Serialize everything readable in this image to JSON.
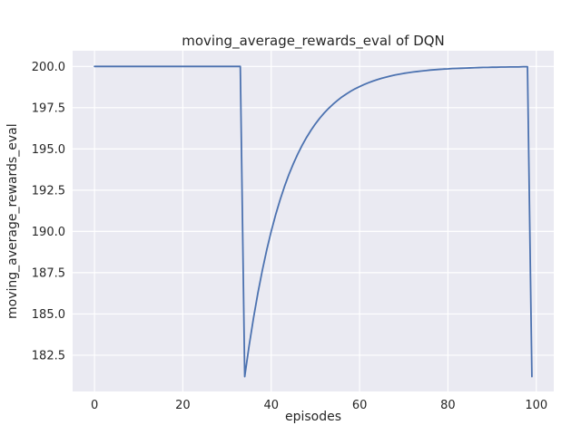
{
  "chart_data": {
    "type": "line",
    "title": "moving_average_rewards_eval of DQN",
    "xlabel": "episodes",
    "ylabel": "moving_average_rewards_eval",
    "xlim": [
      -4.95,
      103.95
    ],
    "ylim": [
      180.3,
      200.95
    ],
    "xticks": [
      0,
      20,
      40,
      60,
      80,
      100
    ],
    "xtick_labels": [
      "0",
      "20",
      "40",
      "60",
      "80",
      "100"
    ],
    "yticks": [
      182.5,
      185.0,
      187.5,
      190.0,
      192.5,
      195.0,
      197.5,
      200.0
    ],
    "ytick_labels": [
      "182.5",
      "185.0",
      "187.5",
      "190.0",
      "192.5",
      "195.0",
      "197.5",
      "200.0"
    ],
    "grid": true,
    "legend": false,
    "style": {
      "line_color": "#4c72b0",
      "plot_bg": "#eaeaf2",
      "grid_color": "#ffffff",
      "fig_bg": "#ffffff",
      "text_color": "#262626"
    },
    "series": [
      {
        "name": "moving_average_rewards_eval",
        "x": [
          0,
          1,
          2,
          3,
          4,
          5,
          6,
          7,
          8,
          9,
          10,
          11,
          12,
          13,
          14,
          15,
          16,
          17,
          18,
          19,
          20,
          21,
          22,
          23,
          24,
          25,
          26,
          27,
          28,
          29,
          30,
          31,
          32,
          33,
          34,
          35,
          36,
          37,
          38,
          39,
          40,
          41,
          42,
          43,
          44,
          45,
          46,
          47,
          48,
          49,
          50,
          51,
          52,
          53,
          54,
          55,
          56,
          57,
          58,
          59,
          60,
          61,
          62,
          63,
          64,
          65,
          66,
          67,
          68,
          69,
          70,
          71,
          72,
          73,
          74,
          75,
          76,
          77,
          78,
          79,
          80,
          81,
          82,
          83,
          84,
          85,
          86,
          87,
          88,
          89,
          90,
          91,
          92,
          93,
          94,
          95,
          96,
          97,
          98,
          99
        ],
        "y": [
          200.0,
          200.0,
          200.0,
          200.0,
          200.0,
          200.0,
          200.0,
          200.0,
          200.0,
          200.0,
          200.0,
          200.0,
          200.0,
          200.0,
          200.0,
          200.0,
          200.0,
          200.0,
          200.0,
          200.0,
          200.0,
          200.0,
          200.0,
          200.0,
          200.0,
          200.0,
          200.0,
          200.0,
          200.0,
          200.0,
          200.0,
          200.0,
          200.0,
          200.0,
          181.2,
          183.08,
          184.77,
          186.29,
          187.66,
          188.9,
          190.01,
          191.01,
          191.91,
          192.72,
          193.45,
          194.1,
          194.69,
          195.22,
          195.7,
          196.13,
          196.52,
          196.87,
          197.18,
          197.46,
          197.71,
          197.94,
          198.15,
          198.33,
          198.5,
          198.65,
          198.78,
          198.9,
          199.01,
          199.11,
          199.2,
          199.28,
          199.35,
          199.42,
          199.48,
          199.53,
          199.58,
          199.62,
          199.66,
          199.69,
          199.72,
          199.75,
          199.78,
          199.8,
          199.82,
          199.84,
          199.85,
          199.87,
          199.88,
          199.89,
          199.9,
          199.91,
          199.92,
          199.93,
          199.94,
          199.94,
          199.95,
          199.95,
          199.96,
          199.96,
          199.97,
          199.97,
          199.97,
          199.98,
          199.98,
          181.2
        ]
      }
    ]
  }
}
